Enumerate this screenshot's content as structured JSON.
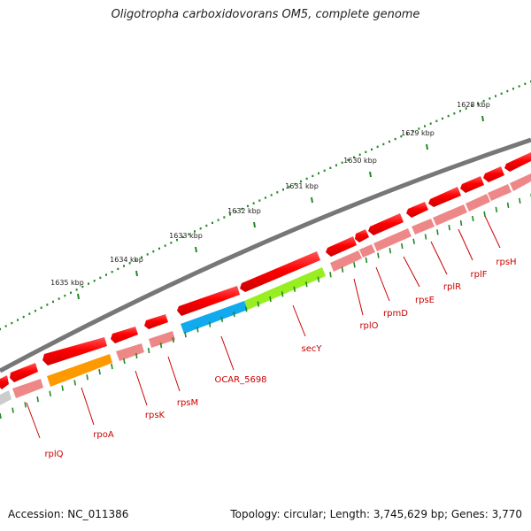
{
  "title": "Oligotropha carboxidovorans OM5, complete genome",
  "footer": {
    "accession": "Accession: NC_011386",
    "summary": "Topology: circular; Length: 3,745,629 bp; Genes: 3,770"
  },
  "colors": {
    "backbone": "#777777",
    "gene_red": "#ff0000",
    "gene_pink": "#ee8888",
    "gene_orange": "#ff9900",
    "gene_blue": "#11aaee",
    "gene_green": "#99ee22",
    "gene_grey": "#cccccc",
    "tick": "#228822",
    "label": "#cc0000"
  },
  "kbp_ticks": [
    {
      "label": "1628 kbp"
    },
    {
      "label": "1629 kbp"
    },
    {
      "label": "1630 kbp"
    },
    {
      "label": "1631 kbp"
    },
    {
      "label": "1632 kbp"
    },
    {
      "label": "1633 kbp"
    },
    {
      "label": "1634 kbp"
    },
    {
      "label": "1635 kbp"
    }
  ],
  "gene_labels": [
    {
      "name": "rplQ"
    },
    {
      "name": "rpoA"
    },
    {
      "name": "rpsK"
    },
    {
      "name": "rpsM"
    },
    {
      "name": "OCAR_5698"
    },
    {
      "name": "secY"
    },
    {
      "name": "rplO"
    },
    {
      "name": "rpmD"
    },
    {
      "name": "rpsE"
    },
    {
      "name": "rplR"
    },
    {
      "name": "rplF"
    },
    {
      "name": "rpsH"
    }
  ]
}
